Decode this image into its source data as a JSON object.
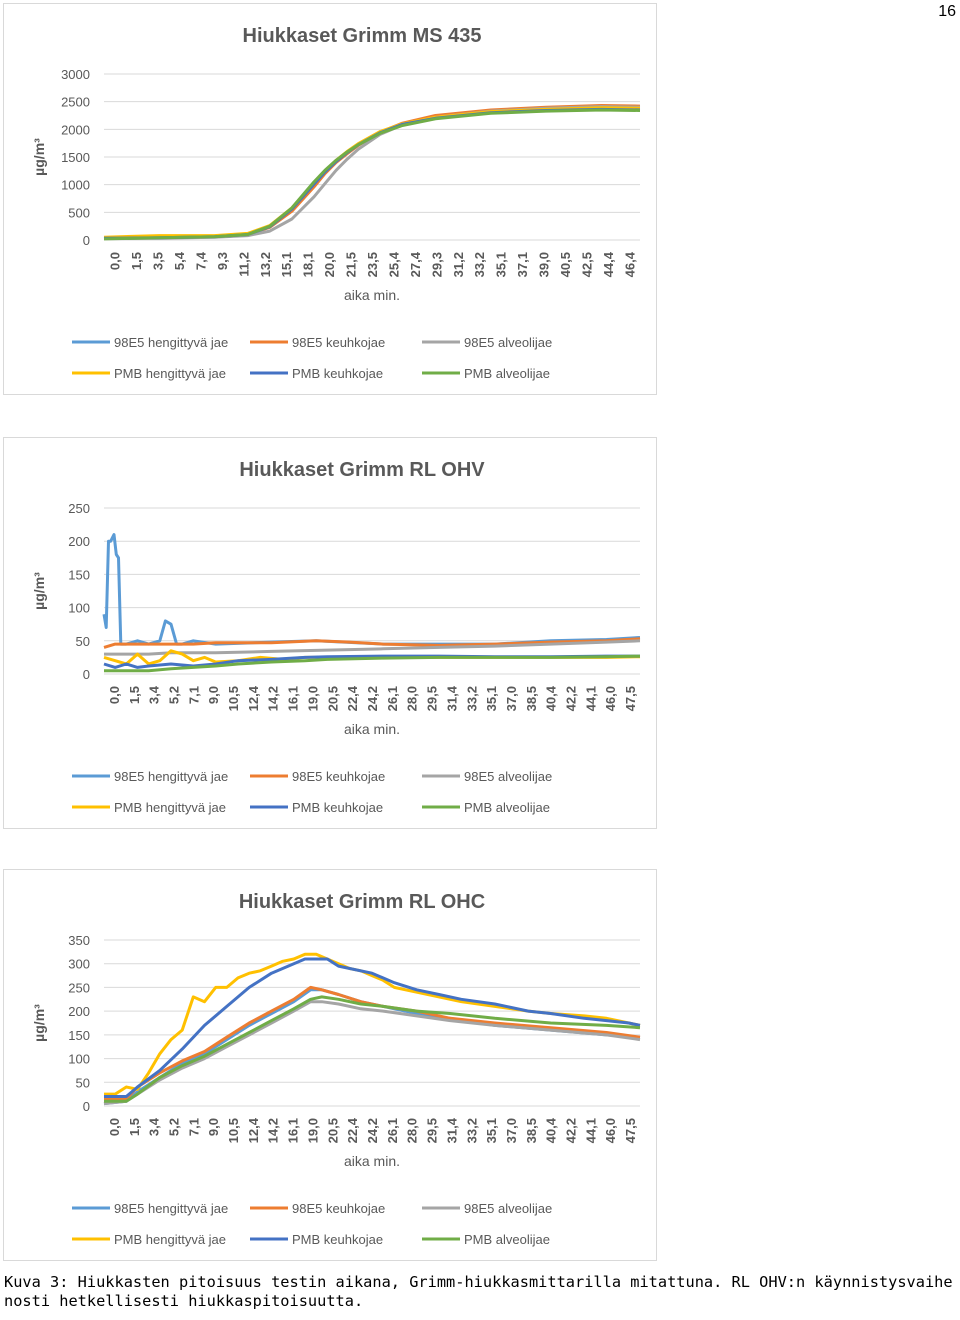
{
  "page_number": "16",
  "caption": "Kuva 3: Hiukkasten pitoisuus testin aikana, Grimm-hiukkasmittarilla mitattuna. RL OHV:n käynnistysvaihe nosti hetkellisesti hiukkaspitoisuutta.",
  "colors": {
    "98E5 hengittyvä jae": "#5b9bd5",
    "98E5 keuhkojae": "#ed7d31",
    "98E5 alveolijae": "#a5a5a5",
    "PMB hengittyvä jae": "#ffc000",
    "PMB keuhkojae": "#4472c4",
    "PMB alveolijae": "#70ad47"
  },
  "chart_data": [
    {
      "type": "line",
      "title": "Hiukkaset Grimm MS 435",
      "xlabel": "aika min.",
      "ylabel": "µg/m³",
      "ylim": [
        0,
        3000
      ],
      "yticks": [
        0,
        500,
        1000,
        1500,
        2000,
        2500,
        3000
      ],
      "xticks": [
        "0,0",
        "1,5",
        "3,5",
        "5,4",
        "7,4",
        "9,3",
        "11,2",
        "13,2",
        "15,1",
        "18,1",
        "20,0",
        "21,5",
        "23,5",
        "25,4",
        "27,4",
        "29,3",
        "31,2",
        "33,2",
        "35,1",
        "37,1",
        "39,0",
        "40,5",
        "42,5",
        "44,4",
        "46,4"
      ],
      "x_range": [
        0,
        48.5
      ],
      "grid": true,
      "legend": "bottom",
      "legend_entries": [
        "98E5 hengittyvä jae",
        "98E5 keuhkojae",
        "98E5 alveolijae",
        "PMB hengittyvä jae",
        "PMB keuhkojae",
        "PMB alveolijae"
      ],
      "series": [
        {
          "name": "98E5 hengittyvä jae",
          "x": [
            0,
            5,
            10,
            13,
            15,
            17,
            19,
            20,
            21,
            22,
            23,
            25,
            27,
            30,
            35,
            40,
            45,
            48.5
          ],
          "values": [
            30,
            40,
            60,
            110,
            250,
            550,
            1000,
            1230,
            1430,
            1580,
            1720,
            1950,
            2100,
            2230,
            2330,
            2380,
            2410,
            2400
          ]
        },
        {
          "name": "98E5 keuhkojae",
          "x": [
            0,
            5,
            10,
            13,
            15,
            17,
            19,
            20,
            21,
            22,
            23,
            25,
            27,
            30,
            35,
            40,
            45,
            48.5
          ],
          "values": [
            30,
            40,
            60,
            100,
            230,
            520,
            960,
            1200,
            1400,
            1560,
            1710,
            1950,
            2110,
            2250,
            2350,
            2400,
            2430,
            2420
          ]
        },
        {
          "name": "98E5 alveolijae",
          "x": [
            0,
            5,
            10,
            13,
            15,
            17,
            19,
            20,
            21,
            22,
            23,
            25,
            27,
            30,
            35,
            40,
            45,
            48.5
          ],
          "values": [
            25,
            30,
            50,
            80,
            160,
            380,
            780,
            1020,
            1260,
            1460,
            1640,
            1910,
            2080,
            2220,
            2330,
            2380,
            2410,
            2400
          ]
        },
        {
          "name": "PMB hengittyvä jae",
          "x": [
            0,
            5,
            10,
            13,
            15,
            17,
            19,
            20,
            21,
            22,
            23,
            25,
            27,
            30,
            35,
            40,
            45,
            48.5
          ],
          "values": [
            50,
            80,
            80,
            120,
            260,
            580,
            1030,
            1250,
            1440,
            1600,
            1740,
            1960,
            2100,
            2220,
            2320,
            2360,
            2390,
            2380
          ]
        },
        {
          "name": "PMB keuhkojae",
          "x": [
            0,
            5,
            10,
            13,
            15,
            17,
            19,
            20,
            21,
            22,
            23,
            25,
            27,
            30,
            35,
            40,
            45,
            48.5
          ],
          "values": [
            30,
            40,
            60,
            100,
            240,
            560,
            1010,
            1230,
            1420,
            1580,
            1720,
            1940,
            2090,
            2200,
            2300,
            2340,
            2360,
            2350
          ]
        },
        {
          "name": "PMB alveolijae",
          "x": [
            0,
            5,
            10,
            13,
            15,
            17,
            19,
            20,
            21,
            22,
            23,
            25,
            27,
            30,
            35,
            40,
            45,
            48.5
          ],
          "values": [
            20,
            40,
            60,
            100,
            250,
            580,
            1050,
            1260,
            1440,
            1590,
            1720,
            1930,
            2070,
            2190,
            2290,
            2330,
            2350,
            2340
          ]
        }
      ]
    },
    {
      "type": "line",
      "title": "Hiukkaset Grimm RL OHV",
      "xlabel": "aika min.",
      "ylabel": "µg/m³",
      "ylim": [
        0,
        250
      ],
      "yticks": [
        0,
        50,
        100,
        150,
        200,
        250
      ],
      "xticks": [
        "0,0",
        "1,5",
        "3,4",
        "5,2",
        "7,1",
        "9,0",
        "10,5",
        "12,4",
        "14,2",
        "16,1",
        "19,0",
        "20,5",
        "22,4",
        "24,2",
        "26,1",
        "28,0",
        "29,5",
        "31,4",
        "33,2",
        "35,1",
        "37,0",
        "38,5",
        "40,4",
        "42,2",
        "44,1",
        "46,0",
        "47,5"
      ],
      "x_range": [
        0,
        48
      ],
      "grid": true,
      "legend": "bottom",
      "legend_entries": [
        "98E5 hengittyvä jae",
        "98E5 keuhkojae",
        "98E5 alveolijae",
        "PMB hengittyvä jae",
        "PMB keuhkojae",
        "PMB alveolijae"
      ],
      "series": [
        {
          "name": "98E5 hengittyvä jae",
          "x": [
            0,
            0.2,
            0.4,
            0.6,
            0.9,
            1.1,
            1.3,
            1.5,
            2,
            3,
            4,
            5,
            5.5,
            6,
            6.5,
            7,
            8,
            10,
            15,
            19,
            25,
            30,
            35,
            40,
            45,
            48
          ],
          "values": [
            90,
            70,
            200,
            200,
            210,
            180,
            175,
            45,
            45,
            50,
            45,
            50,
            80,
            75,
            45,
            45,
            50,
            45,
            48,
            50,
            45,
            45,
            45,
            50,
            52,
            55
          ]
        },
        {
          "name": "98E5 keuhkojae",
          "x": [
            0,
            1,
            2,
            4,
            6,
            8,
            10,
            15,
            19,
            22,
            25,
            30,
            35,
            40,
            45,
            48
          ],
          "values": [
            40,
            45,
            45,
            45,
            45,
            45,
            47,
            47,
            50,
            48,
            45,
            43,
            45,
            48,
            50,
            53
          ]
        },
        {
          "name": "98E5 alveolijae",
          "x": [
            0,
            2,
            4,
            6,
            10,
            15,
            20,
            25,
            30,
            35,
            40,
            45,
            48
          ],
          "values": [
            30,
            30,
            30,
            32,
            32,
            34,
            36,
            38,
            40,
            42,
            45,
            48,
            50
          ]
        },
        {
          "name": "PMB hengittyvä jae",
          "x": [
            0,
            1,
            2,
            3,
            4,
            5,
            6,
            7,
            8,
            9,
            10,
            12,
            14,
            16,
            18,
            20,
            25,
            30,
            35,
            40,
            45,
            48
          ],
          "values": [
            25,
            20,
            15,
            30,
            15,
            20,
            35,
            30,
            20,
            25,
            18,
            20,
            25,
            22,
            25,
            25,
            25,
            25,
            25,
            25,
            25,
            26
          ]
        },
        {
          "name": "PMB keuhkojae",
          "x": [
            0,
            1,
            2,
            3,
            4,
            6,
            8,
            10,
            12,
            15,
            18,
            20,
            25,
            30,
            35,
            40,
            45,
            48
          ],
          "values": [
            15,
            10,
            15,
            10,
            12,
            15,
            12,
            15,
            20,
            22,
            25,
            26,
            27,
            27,
            26,
            26,
            27,
            27
          ]
        },
        {
          "name": "PMB alveolijae",
          "x": [
            0,
            2,
            4,
            6,
            8,
            10,
            12,
            15,
            18,
            20,
            25,
            30,
            35,
            40,
            45,
            48
          ],
          "values": [
            5,
            5,
            5,
            8,
            10,
            12,
            15,
            18,
            20,
            22,
            24,
            25,
            25,
            25,
            26,
            27
          ]
        }
      ]
    },
    {
      "type": "line",
      "title": "Hiukkaset Grimm RL OHC",
      "xlabel": "aika min.",
      "ylabel": "µg/m³",
      "ylim": [
        0,
        350
      ],
      "yticks": [
        0,
        50,
        100,
        150,
        200,
        250,
        300,
        350
      ],
      "xticks": [
        "0,0",
        "1,5",
        "3,4",
        "5,2",
        "7,1",
        "9,0",
        "10,5",
        "12,4",
        "14,2",
        "16,1",
        "19,0",
        "20,5",
        "22,4",
        "24,2",
        "26,1",
        "28,0",
        "29,5",
        "31,4",
        "33,2",
        "35,1",
        "37,0",
        "38,5",
        "40,4",
        "42,2",
        "44,1",
        "46,0",
        "47,5"
      ],
      "x_range": [
        0,
        48
      ],
      "grid": true,
      "legend": "bottom",
      "legend_entries": [
        "98E5 hengittyvä jae",
        "98E5 keuhkojae",
        "98E5 alveolijae",
        "PMB hengittyvä jae",
        "PMB keuhkojae",
        "PMB alveolijae"
      ],
      "series": [
        {
          "name": "98E5 hengittyvä jae",
          "x": [
            0,
            2,
            3,
            5,
            7,
            9,
            11,
            13,
            15,
            17,
            18.5,
            19.5,
            21,
            23,
            25,
            28,
            31,
            35,
            40,
            45,
            48
          ],
          "values": [
            5,
            10,
            30,
            60,
            90,
            110,
            140,
            170,
            195,
            220,
            245,
            245,
            235,
            220,
            210,
            195,
            185,
            170,
            160,
            150,
            145
          ]
        },
        {
          "name": "98E5 keuhkojae",
          "x": [
            0,
            2,
            3,
            5,
            7,
            9,
            11,
            13,
            15,
            17,
            18.5,
            19.5,
            21,
            23,
            25,
            28,
            31,
            35,
            40,
            45,
            48
          ],
          "values": [
            15,
            15,
            40,
            70,
            95,
            115,
            145,
            175,
            200,
            225,
            250,
            245,
            235,
            220,
            210,
            200,
            185,
            175,
            165,
            155,
            145
          ]
        },
        {
          "name": "98E5 alveolijae",
          "x": [
            0,
            2,
            3,
            5,
            7,
            9,
            11,
            13,
            15,
            17,
            18.5,
            19.5,
            21,
            23,
            25,
            28,
            31,
            35,
            40,
            45,
            48
          ],
          "values": [
            5,
            10,
            25,
            55,
            80,
            100,
            125,
            150,
            175,
            200,
            220,
            220,
            215,
            205,
            200,
            190,
            180,
            170,
            160,
            150,
            140
          ]
        },
        {
          "name": "PMB hengittyvä jae",
          "x": [
            0,
            1,
            2,
            3,
            4,
            5,
            6,
            7,
            8,
            9,
            10,
            11,
            12,
            13,
            14,
            15,
            16,
            17,
            18,
            19,
            20,
            21,
            22,
            23,
            24,
            25,
            26,
            28,
            30,
            32,
            35,
            38,
            40,
            43,
            45,
            47,
            48
          ],
          "values": [
            25,
            25,
            40,
            35,
            70,
            110,
            140,
            160,
            230,
            220,
            250,
            250,
            270,
            280,
            285,
            295,
            305,
            310,
            320,
            320,
            310,
            300,
            290,
            285,
            275,
            265,
            250,
            240,
            230,
            220,
            210,
            200,
            195,
            190,
            185,
            175,
            170
          ]
        },
        {
          "name": "PMB keuhkojae",
          "x": [
            0,
            2,
            3,
            5,
            7,
            9,
            11,
            13,
            15,
            17,
            18,
            19,
            20,
            21,
            22,
            24,
            26,
            28,
            30,
            32,
            35,
            38,
            40,
            43,
            45,
            47,
            48
          ],
          "values": [
            20,
            20,
            40,
            75,
            120,
            170,
            210,
            250,
            280,
            300,
            310,
            310,
            310,
            295,
            290,
            280,
            260,
            245,
            235,
            225,
            215,
            200,
            195,
            185,
            180,
            175,
            170
          ]
        },
        {
          "name": "PMB alveolijae",
          "x": [
            0,
            2,
            3,
            5,
            7,
            9,
            11,
            13,
            15,
            17,
            18.5,
            19.5,
            21,
            23,
            25,
            28,
            31,
            35,
            40,
            45,
            48
          ],
          "values": [
            10,
            10,
            25,
            60,
            85,
            105,
            130,
            155,
            180,
            205,
            225,
            230,
            225,
            215,
            210,
            200,
            195,
            185,
            175,
            170,
            165
          ]
        }
      ]
    }
  ]
}
